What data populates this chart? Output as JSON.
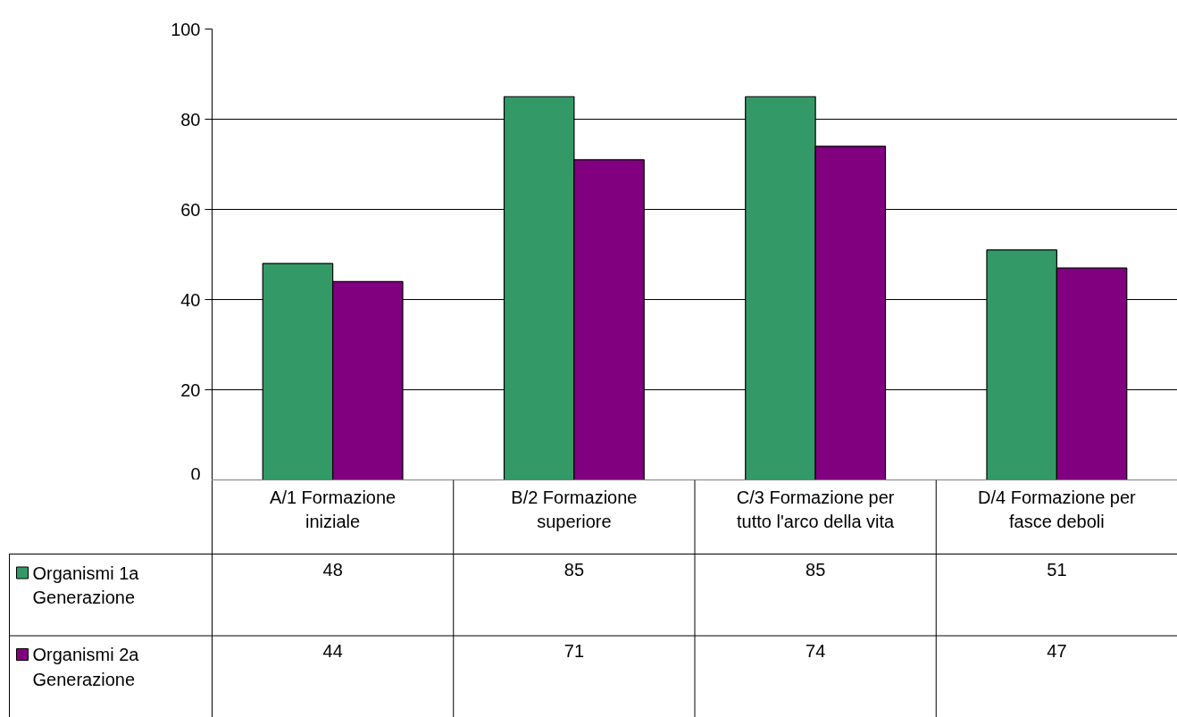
{
  "chart_data": {
    "type": "bar",
    "categories": [
      "A/1 Formazione iniziale",
      "B/2 Formazione superiore",
      "C/3 Formazione per tutto l'arco della vita",
      "D/4 Formazione per fasce deboli"
    ],
    "series": [
      {
        "name": "Organismi 1a Generazione",
        "color": "#339966",
        "values": [
          48,
          85,
          85,
          51
        ]
      },
      {
        "name": "Organismi 2a Generazione",
        "color": "#800080",
        "values": [
          44,
          71,
          74,
          47
        ]
      }
    ],
    "ylim": [
      0,
      100
    ],
    "yticks": [
      0,
      20,
      40,
      60,
      80,
      100
    ],
    "grid": "y",
    "legend": "bottom",
    "data_labels": true
  }
}
